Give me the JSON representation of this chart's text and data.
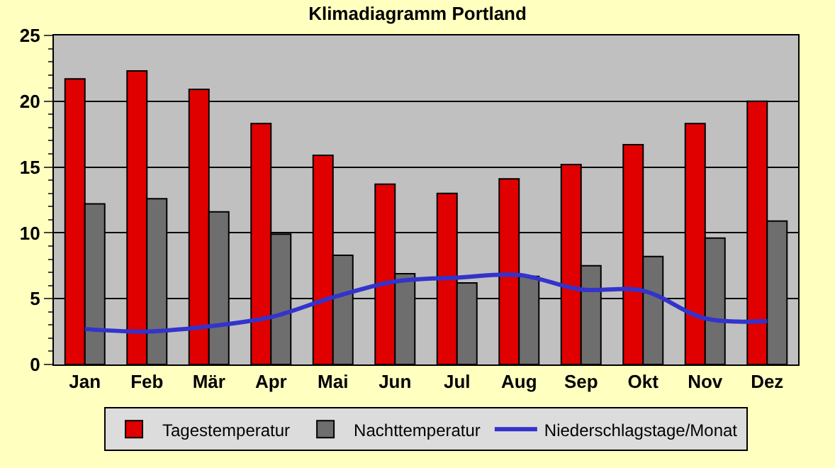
{
  "chart_data": {
    "type": "bar",
    "title": "Klimadiagramm Portland",
    "categories": [
      "Jan",
      "Feb",
      "Mär",
      "Apr",
      "Mai",
      "Jun",
      "Jul",
      "Aug",
      "Sep",
      "Okt",
      "Nov",
      "Dez"
    ],
    "series": [
      {
        "name": "Tagestemperatur",
        "color": "#e00000",
        "values": [
          21.7,
          22.3,
          20.9,
          18.3,
          15.9,
          13.7,
          13.0,
          14.1,
          15.2,
          16.7,
          18.3,
          20.0
        ]
      },
      {
        "name": "Nachttemperatur",
        "color": "#6e6e6e",
        "values": [
          12.2,
          12.6,
          11.6,
          9.9,
          8.3,
          6.9,
          6.2,
          6.7,
          7.5,
          8.2,
          9.6,
          10.9
        ]
      },
      {
        "name": "Niederschlagstage/Monat",
        "type": "line",
        "color": "#3333cc",
        "values": [
          2.7,
          2.5,
          2.9,
          3.6,
          5.1,
          6.3,
          6.6,
          6.8,
          5.7,
          5.6,
          3.5,
          3.3
        ]
      }
    ],
    "ylim": [
      0,
      25
    ],
    "yticks": [
      0,
      5,
      10,
      15,
      20,
      25
    ],
    "grid": "y",
    "legend": "bottom",
    "marker": "none",
    "line_style": "solid"
  }
}
